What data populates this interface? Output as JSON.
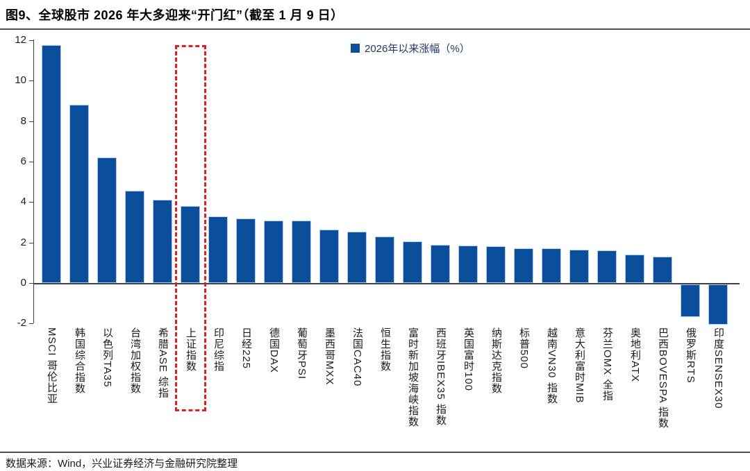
{
  "title": "图9、全球股市 2026 年大多迎来“开门红”（截至 1 月 9 日）",
  "legend": "2026年以来涨幅（%）",
  "footer": "数据来源：Wind，兴业证券经济与金融研究院整理",
  "colors": {
    "bar": "#0b4f9c",
    "bar_edge": "#aecbe8",
    "highlight_red": "#dd2020",
    "axis": "#404040"
  },
  "chart_data": {
    "type": "bar",
    "title": "图9、全球股市 2026 年大多迎来“开门红”（截至 1 月 9 日）",
    "legend_entries": [
      "2026年以来涨幅（%）"
    ],
    "legend_position": "top",
    "grid": false,
    "ylim": [
      -2,
      12
    ],
    "yticks": [
      12,
      10,
      8,
      6,
      4,
      2,
      0,
      -2
    ],
    "categories": [
      "MSCI 哥伦比亚",
      "韩国综合指数",
      "以色列TA35",
      "台湾加权指数",
      "希腊ASE 综指",
      "上证指数",
      "印尼综指",
      "日经225",
      "德国DAX",
      "葡萄牙PSI",
      "墨西哥MXX",
      "法国CAC40",
      "恒生指数",
      "富时新加坡海峡指数",
      "西班牙IBEX35 指数",
      "英国富时100",
      "纳斯达克指数",
      "标普500",
      "越南VN30 指数",
      "意大利富时MIB",
      "芬兰OMX 全指",
      "奥地利ATX",
      "巴西BOVESPA 指数",
      "俄罗斯RTS",
      "印度SENSEX30"
    ],
    "values": [
      11.75,
      8.8,
      6.2,
      4.55,
      4.1,
      3.8,
      3.3,
      3.2,
      3.1,
      3.1,
      2.65,
      2.55,
      2.3,
      2.05,
      1.9,
      1.85,
      1.8,
      1.7,
      1.7,
      1.65,
      1.6,
      1.4,
      1.3,
      -1.6,
      -2.0
    ],
    "highlight": {
      "category": "上证指数",
      "index": 5
    }
  }
}
